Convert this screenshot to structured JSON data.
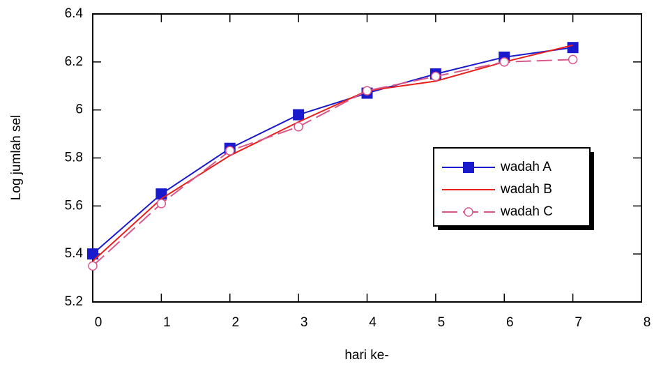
{
  "chart_data": {
    "type": "line",
    "x_label": "hari ke-",
    "y_label": "Log jumlah sel",
    "x": [
      0,
      1,
      2,
      3,
      4,
      5,
      6,
      7
    ],
    "series": [
      {
        "name": "wadah A",
        "color": "#1a1acd",
        "marker": "square",
        "dash": false,
        "values": [
          5.4,
          5.65,
          5.84,
          5.98,
          6.07,
          6.15,
          6.22,
          6.26
        ]
      },
      {
        "name": "wadah B",
        "color": "#e8201c",
        "marker": "none",
        "dash": false,
        "values": [
          5.37,
          5.63,
          5.81,
          5.95,
          6.08,
          6.12,
          6.2,
          6.27
        ]
      },
      {
        "name": "wadah C",
        "color": "#d8568a",
        "marker": "circle",
        "dash": true,
        "values": [
          5.35,
          5.61,
          5.83,
          5.93,
          6.08,
          6.14,
          6.2,
          6.21
        ]
      }
    ],
    "xlim": [
      0,
      8
    ],
    "xticks": [
      0,
      1,
      2,
      3,
      4,
      5,
      6,
      7,
      8
    ],
    "ylim": [
      5.2,
      6.4
    ],
    "yticks": [
      5.2,
      5.4,
      5.6,
      5.8,
      6,
      6.2,
      6.4
    ],
    "legend": "center right"
  }
}
